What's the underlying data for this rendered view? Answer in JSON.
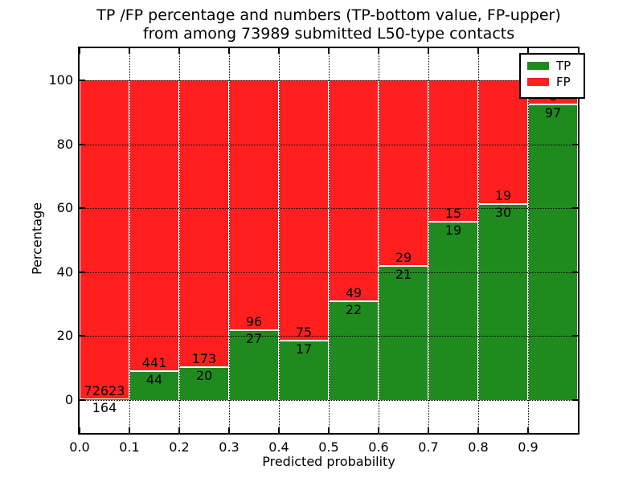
{
  "figure": {
    "title_line1": "TP /FP percentage and numbers (TP-bottom value, FP-upper)",
    "title_line2": "from among 73989 submitted L50-type contacts"
  },
  "chart_data": {
    "type": "bar",
    "stacked": true,
    "normalized_to_percent": true,
    "title": "TP /FP percentage and numbers (TP-bottom value, FP-upper) from among 73989 submitted L50-type contacts",
    "xlabel": "Predicted probability",
    "ylabel": "Percentage",
    "total_contacts": 73989,
    "bin_width": 0.1,
    "bin_starts": [
      0.0,
      0.1,
      0.2,
      0.3,
      0.4,
      0.5,
      0.6,
      0.7,
      0.8,
      0.9
    ],
    "xtick_labels": [
      "0.0",
      "0.1",
      "0.2",
      "0.3",
      "0.4",
      "0.5",
      "0.6",
      "0.7",
      "0.8",
      "0.9"
    ],
    "ytick_values": [
      0,
      20,
      40,
      60,
      80,
      100
    ],
    "xlim": [
      0.0,
      1.0
    ],
    "ylim": [
      -10.3,
      110.1
    ],
    "grid": "dotted black, both axes, drawn above bars",
    "series": [
      {
        "name": "TP",
        "color": "#1f8b1f",
        "counts": [
          164,
          44,
          20,
          27,
          17,
          22,
          21,
          19,
          30,
          97
        ]
      },
      {
        "name": "FP",
        "color": "#ff1f1f",
        "counts": [
          72623,
          441,
          173,
          96,
          75,
          49,
          29,
          15,
          19,
          8
        ]
      }
    ],
    "tp_percent": [
      0.23,
      9.07,
      10.36,
      21.95,
      18.48,
      30.99,
      42.0,
      55.88,
      61.22,
      92.38
    ],
    "bar_edge_color": "#ffffff",
    "axis_color": "#000000",
    "legend": {
      "position": "upper right",
      "entries": [
        {
          "label": "TP",
          "color": "#1f8b1f"
        },
        {
          "label": "FP",
          "color": "#ff1f1f"
        }
      ]
    }
  }
}
